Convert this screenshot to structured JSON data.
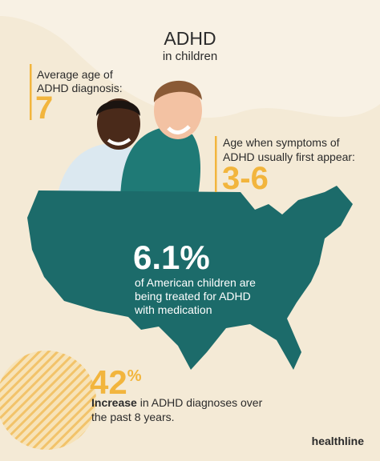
{
  "header": {
    "title": "ADHD",
    "subtitle": "in children"
  },
  "stats": [
    {
      "label_lines": [
        "Average age of",
        "ADHD diagnosis:"
      ],
      "value": "7"
    },
    {
      "label_lines": [
        "Age when symptoms of",
        "ADHD usually first appear:"
      ],
      "value": "3-6"
    },
    {
      "value": "6.1%",
      "label_lines": [
        "of American children are",
        "being treated for ADHD",
        "with medication"
      ]
    },
    {
      "value": "42",
      "unit": "%",
      "label_bold": "Increase",
      "label_rest": " in ADHD diagnoses over",
      "label_line2": "the past 8 years."
    }
  ],
  "brand": "healthline"
}
